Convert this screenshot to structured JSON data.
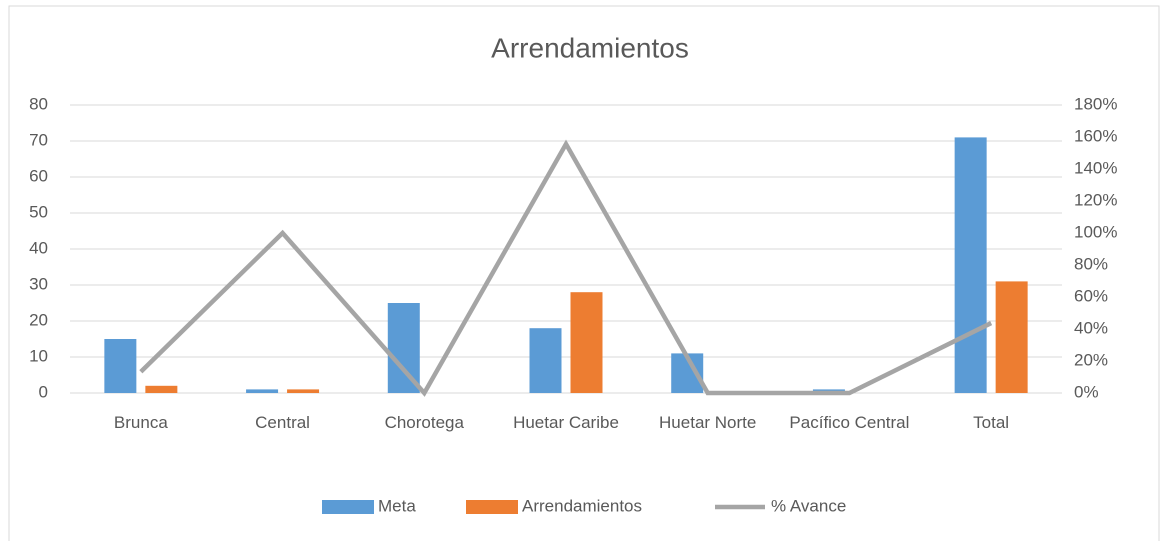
{
  "chart_data": {
    "type": "bar",
    "title": "Arrendamientos",
    "categories": [
      "Brunca",
      "Central",
      "Chorotega",
      "Huetar Caribe",
      "Huetar Norte",
      "Pacífico Central",
      "Total"
    ],
    "series": [
      {
        "name": "Meta",
        "color": "#5b9bd5",
        "values": [
          15,
          1,
          25,
          18,
          11,
          1,
          71
        ]
      },
      {
        "name": "Arrendamientos",
        "color": "#ed7d31",
        "values": [
          2,
          1,
          0,
          28,
          0,
          0,
          31
        ]
      },
      {
        "name": "% Avance",
        "color": "#a5a5a5",
        "type": "line",
        "axis": "y2",
        "values": [
          13.3,
          100,
          0,
          155.6,
          0,
          0,
          43.7
        ]
      }
    ],
    "ylim": [
      0,
      80
    ],
    "yticks": [
      0,
      10,
      20,
      30,
      40,
      50,
      60,
      70,
      80
    ],
    "y2lim": [
      0,
      180
    ],
    "y2ticks": [
      {
        "value": 0,
        "label": "0%"
      },
      {
        "value": 20,
        "label": "20%"
      },
      {
        "value": 40,
        "label": "40%"
      },
      {
        "value": 60,
        "label": "60%"
      },
      {
        "value": 80,
        "label": "80%"
      },
      {
        "value": 100,
        "label": "100%"
      },
      {
        "value": 120,
        "label": "120%"
      },
      {
        "value": 140,
        "label": "140%"
      },
      {
        "value": 160,
        "label": "160%"
      },
      {
        "value": 180,
        "label": "180%"
      }
    ],
    "grid": true,
    "legend": "bottom"
  }
}
